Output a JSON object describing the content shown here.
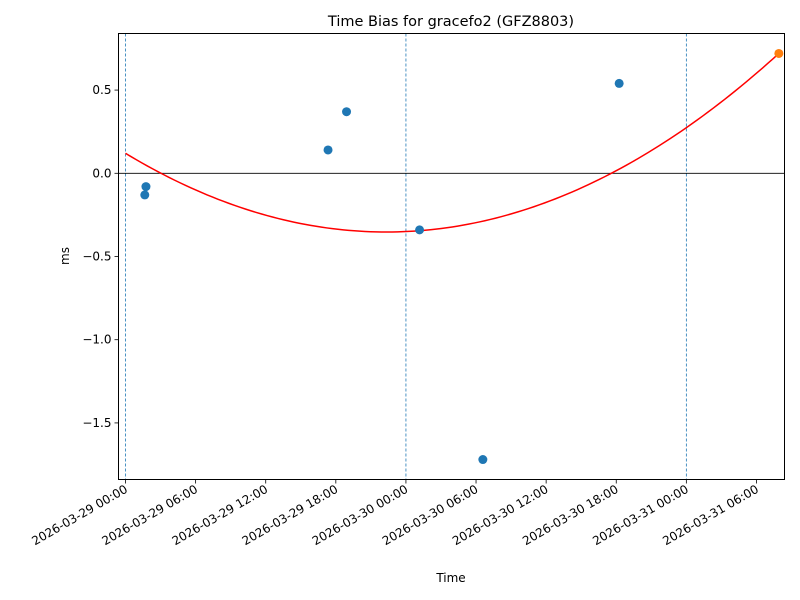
{
  "chart_data": {
    "type": "scatter",
    "title": "Time Bias for gracefo2 (GFZ8803)",
    "xlabel": "Time",
    "ylabel": "ms",
    "x_axis_type": "datetime",
    "xlim": [
      "2026-03-28T23:24",
      "2026-03-31T08:24"
    ],
    "ylim": [
      -1.84,
      0.84
    ],
    "x_ticks": [
      "2026-03-29 00:00",
      "2026-03-29 06:00",
      "2026-03-29 12:00",
      "2026-03-29 18:00",
      "2026-03-30 00:00",
      "2026-03-30 06:00",
      "2026-03-30 12:00",
      "2026-03-30 18:00",
      "2026-03-31 00:00",
      "2026-03-31 06:00"
    ],
    "y_ticks": [
      0.5,
      0.0,
      -0.5,
      -1.0,
      -1.5
    ],
    "y_tick_labels": [
      "0.5",
      "0.0",
      "−0.5",
      "−1.0",
      "−1.5"
    ],
    "zero_line": 0,
    "vertical_day_lines": [
      "2026-03-29T00:00",
      "2026-03-30T00:00",
      "2026-03-31T00:00"
    ],
    "series": [
      {
        "kind": "scatter",
        "color": "#1f77b4",
        "points": [
          {
            "x": "2026-03-29T01:39",
            "y": -0.13
          },
          {
            "x": "2026-03-29T01:45",
            "y": -0.08
          },
          {
            "x": "2026-03-29T17:20",
            "y": 0.14
          },
          {
            "x": "2026-03-29T18:55",
            "y": 0.37
          },
          {
            "x": "2026-03-30T01:10",
            "y": -0.34
          },
          {
            "x": "2026-03-30T06:35",
            "y": -1.72
          },
          {
            "x": "2026-03-30T18:15",
            "y": 0.54
          }
        ]
      },
      {
        "kind": "scatter",
        "color": "#ff7f0e",
        "points": [
          {
            "x": "2026-03-31T07:55",
            "y": 0.72
          }
        ]
      },
      {
        "kind": "line",
        "color": "#ff0000",
        "points": [
          {
            "x": "2026-03-29T00:00",
            "y": 0.12
          },
          {
            "x": "2026-03-29T12:00",
            "y": -0.26
          },
          {
            "x": "2026-03-30T00:00",
            "y": -0.35
          },
          {
            "x": "2026-03-30T12:00",
            "y": -0.14
          },
          {
            "x": "2026-03-31T00:00",
            "y": 0.29
          },
          {
            "x": "2026-03-31T07:55",
            "y": 0.72
          }
        ]
      }
    ],
    "grid": false,
    "legend": "none"
  }
}
